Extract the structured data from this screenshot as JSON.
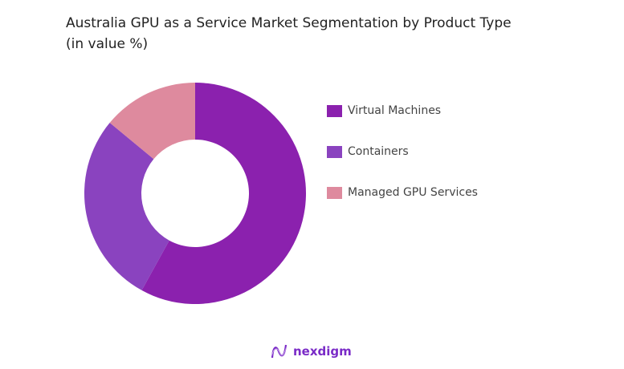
{
  "chart_data": {
    "type": "pie",
    "variant": "donut",
    "title": "Australia GPU as a Service Market Segmentation by Product Type",
    "subtitle": "(in value %)",
    "categories": [
      "Virtual Machines",
      "Containers",
      "Managed GPU Services"
    ],
    "values": [
      58,
      28,
      14
    ],
    "colors": [
      "#8B21AE",
      "#8A43BF",
      "#DE8A9E"
    ],
    "legend_position": "right"
  },
  "branding": {
    "logo_text": "nexdigm"
  }
}
